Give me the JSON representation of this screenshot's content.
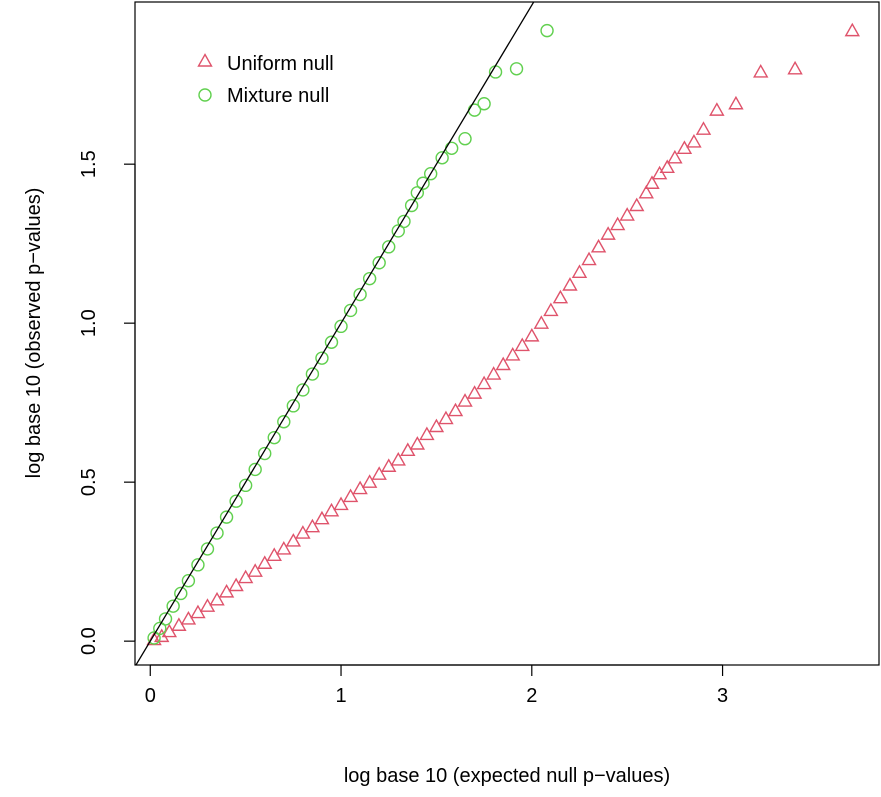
{
  "chart_data": {
    "type": "scatter",
    "xlabel": "log base 10 (expected null p−values)",
    "ylabel": "log base 10 (observed p−values)",
    "xlim": [
      -0.08,
      3.82
    ],
    "ylim": [
      -0.075,
      2.01
    ],
    "x_ticks": [
      0,
      1,
      2,
      3
    ],
    "x_tick_labels": [
      "0",
      "1",
      "2",
      "3"
    ],
    "y_ticks": [
      0.0,
      0.5,
      1.0,
      1.5
    ],
    "y_tick_labels": [
      "0.0",
      "0.5",
      "1.0",
      "1.5"
    ],
    "grid": false,
    "legend_position": "top-left",
    "reference_line": {
      "slope": 1,
      "intercept": 0,
      "color": "#000000"
    },
    "series": [
      {
        "name": "Uniform null",
        "marker": "triangle-open",
        "color": "#DF536B",
        "points": [
          [
            0.02,
            0.005
          ],
          [
            0.06,
            0.015
          ],
          [
            0.1,
            0.03
          ],
          [
            0.15,
            0.05
          ],
          [
            0.2,
            0.07
          ],
          [
            0.25,
            0.09
          ],
          [
            0.3,
            0.11
          ],
          [
            0.35,
            0.13
          ],
          [
            0.4,
            0.155
          ],
          [
            0.45,
            0.175
          ],
          [
            0.5,
            0.2
          ],
          [
            0.55,
            0.22
          ],
          [
            0.6,
            0.245
          ],
          [
            0.65,
            0.27
          ],
          [
            0.7,
            0.29
          ],
          [
            0.75,
            0.315
          ],
          [
            0.8,
            0.34
          ],
          [
            0.85,
            0.36
          ],
          [
            0.9,
            0.385
          ],
          [
            0.95,
            0.41
          ],
          [
            1.0,
            0.43
          ],
          [
            1.05,
            0.455
          ],
          [
            1.1,
            0.48
          ],
          [
            1.15,
            0.5
          ],
          [
            1.2,
            0.525
          ],
          [
            1.25,
            0.55
          ],
          [
            1.3,
            0.57
          ],
          [
            1.35,
            0.6
          ],
          [
            1.4,
            0.62
          ],
          [
            1.45,
            0.65
          ],
          [
            1.5,
            0.675
          ],
          [
            1.55,
            0.7
          ],
          [
            1.6,
            0.725
          ],
          [
            1.65,
            0.755
          ],
          [
            1.7,
            0.78
          ],
          [
            1.75,
            0.81
          ],
          [
            1.8,
            0.84
          ],
          [
            1.85,
            0.87
          ],
          [
            1.9,
            0.9
          ],
          [
            1.95,
            0.93
          ],
          [
            2.0,
            0.96
          ],
          [
            2.05,
            1.0
          ],
          [
            2.1,
            1.04
          ],
          [
            2.15,
            1.08
          ],
          [
            2.2,
            1.12
          ],
          [
            2.25,
            1.16
          ],
          [
            2.3,
            1.2
          ],
          [
            2.35,
            1.24
          ],
          [
            2.4,
            1.28
          ],
          [
            2.45,
            1.31
          ],
          [
            2.5,
            1.34
          ],
          [
            2.55,
            1.37
          ],
          [
            2.6,
            1.41
          ],
          [
            2.63,
            1.44
          ],
          [
            2.67,
            1.47
          ],
          [
            2.71,
            1.49
          ],
          [
            2.75,
            1.52
          ],
          [
            2.8,
            1.55
          ],
          [
            2.85,
            1.57
          ],
          [
            2.9,
            1.61
          ],
          [
            2.97,
            1.67
          ],
          [
            3.07,
            1.69
          ],
          [
            3.2,
            1.79
          ],
          [
            3.38,
            1.8
          ],
          [
            3.68,
            1.92
          ]
        ]
      },
      {
        "name": "Mixture null",
        "marker": "circle-open",
        "color": "#61D04F",
        "points": [
          [
            0.02,
            0.01
          ],
          [
            0.05,
            0.04
          ],
          [
            0.08,
            0.07
          ],
          [
            0.12,
            0.11
          ],
          [
            0.16,
            0.15
          ],
          [
            0.2,
            0.19
          ],
          [
            0.25,
            0.24
          ],
          [
            0.3,
            0.29
          ],
          [
            0.35,
            0.34
          ],
          [
            0.4,
            0.39
          ],
          [
            0.45,
            0.44
          ],
          [
            0.5,
            0.49
          ],
          [
            0.55,
            0.54
          ],
          [
            0.6,
            0.59
          ],
          [
            0.65,
            0.64
          ],
          [
            0.7,
            0.69
          ],
          [
            0.75,
            0.74
          ],
          [
            0.8,
            0.79
          ],
          [
            0.85,
            0.84
          ],
          [
            0.9,
            0.89
          ],
          [
            0.95,
            0.94
          ],
          [
            1.0,
            0.99
          ],
          [
            1.05,
            1.04
          ],
          [
            1.1,
            1.09
          ],
          [
            1.15,
            1.14
          ],
          [
            1.2,
            1.19
          ],
          [
            1.25,
            1.24
          ],
          [
            1.3,
            1.29
          ],
          [
            1.33,
            1.32
          ],
          [
            1.37,
            1.37
          ],
          [
            1.4,
            1.41
          ],
          [
            1.43,
            1.44
          ],
          [
            1.47,
            1.47
          ],
          [
            1.53,
            1.52
          ],
          [
            1.58,
            1.55
          ],
          [
            1.65,
            1.58
          ],
          [
            1.7,
            1.67
          ],
          [
            1.75,
            1.69
          ],
          [
            1.81,
            1.79
          ],
          [
            1.92,
            1.8
          ],
          [
            2.08,
            1.92
          ]
        ]
      }
    ]
  }
}
